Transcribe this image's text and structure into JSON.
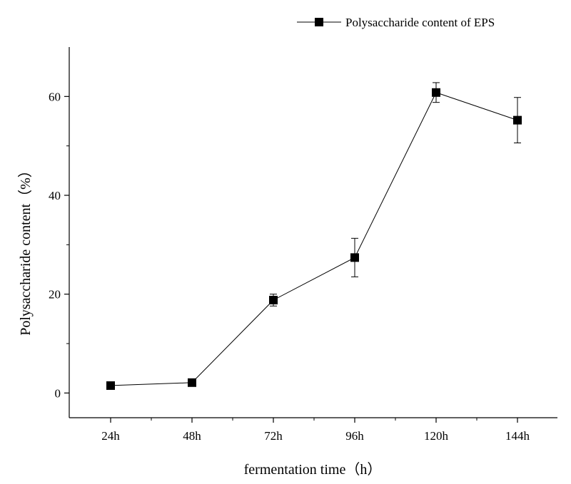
{
  "chart_data": {
    "type": "line",
    "title": "",
    "xlabel": "fermentation time（h）",
    "ylabel": "Polysaccharide content（%）",
    "categories": [
      "24h",
      "48h",
      "72h",
      "96h",
      "120h",
      "144h"
    ],
    "ylim": [
      -5,
      70
    ],
    "yticks": [
      0,
      20,
      40,
      60
    ],
    "ytick_labels": [
      "0",
      "20",
      "40",
      "60"
    ],
    "series": [
      {
        "name": "Polysaccharide content of EPS",
        "values": [
          1.5,
          2.1,
          18.8,
          27.4,
          60.8,
          55.2
        ],
        "errors": [
          0.3,
          0.3,
          1.2,
          3.9,
          2.0,
          4.6
        ],
        "color": "#000000",
        "marker": "square"
      }
    ],
    "grid": false,
    "legend_position": "top-right"
  }
}
